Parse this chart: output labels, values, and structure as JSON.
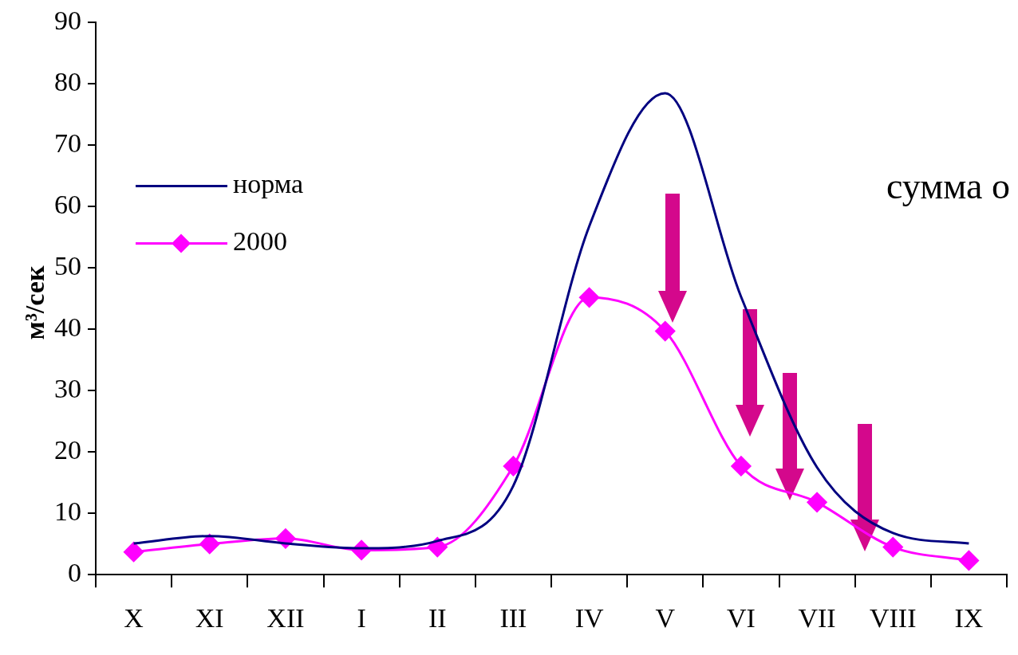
{
  "chart_data": {
    "type": "line",
    "ylabel": "м³/сек",
    "categories": [
      "X",
      "XI",
      "XII",
      "I",
      "II",
      "III",
      "IV",
      "V",
      "VI",
      "VII",
      "VIII",
      "IX"
    ],
    "ylim": [
      0,
      90
    ],
    "yticks": [
      0,
      10,
      20,
      30,
      40,
      50,
      60,
      70,
      80,
      90
    ],
    "legend": "top left",
    "series": [
      {
        "name": "норма",
        "color": "#000080",
        "marker": "none",
        "values": [
          5.1,
          6.3,
          5.1,
          4.3,
          5.5,
          14.5,
          56.8,
          78.5,
          45.3,
          17.5,
          6.8,
          5.1
        ]
      },
      {
        "name": "2000",
        "color": "#ff00ff",
        "marker": "diamond",
        "values": [
          3.7,
          5.0,
          5.9,
          4.0,
          4.5,
          17.7,
          45.2,
          39.7,
          17.7,
          11.8,
          4.5,
          2.3
        ]
      }
    ],
    "annotations": [
      "сумма о"
    ]
  }
}
